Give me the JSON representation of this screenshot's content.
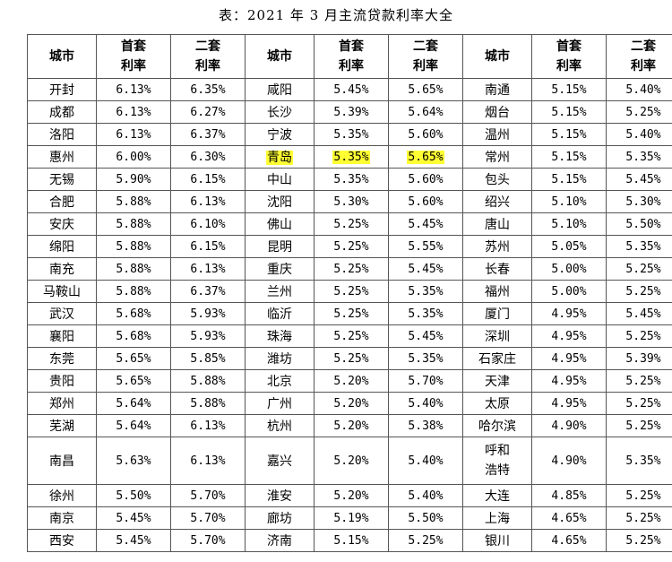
{
  "caption": "表：2021 年 3 月主流贷款利率大全",
  "headers": [
    "城市",
    "首套利率",
    "二套利率",
    "城市",
    "首套利率",
    "二套利率",
    "城市",
    "首套利率",
    "二套利率"
  ],
  "rows": [
    [
      "开封",
      "6.13%",
      "6.35%",
      "咸阳",
      "5.45%",
      "5.65%",
      "南通",
      "5.15%",
      "5.40%"
    ],
    [
      "成都",
      "6.13%",
      "6.27%",
      "长沙",
      "5.39%",
      "5.64%",
      "烟台",
      "5.15%",
      "5.25%"
    ],
    [
      "洛阳",
      "6.13%",
      "6.37%",
      "宁波",
      "5.35%",
      "5.60%",
      "温州",
      "5.15%",
      "5.40%"
    ],
    [
      "惠州",
      "6.00%",
      "6.30%",
      "青岛",
      "5.35%",
      "5.65%",
      "常州",
      "5.15%",
      "5.35%"
    ],
    [
      "无锡",
      "5.90%",
      "6.15%",
      "中山",
      "5.35%",
      "5.60%",
      "包头",
      "5.15%",
      "5.45%"
    ],
    [
      "合肥",
      "5.88%",
      "6.13%",
      "沈阳",
      "5.30%",
      "5.60%",
      "绍兴",
      "5.10%",
      "5.30%"
    ],
    [
      "安庆",
      "5.88%",
      "6.10%",
      "佛山",
      "5.25%",
      "5.45%",
      "唐山",
      "5.10%",
      "5.50%"
    ],
    [
      "绵阳",
      "5.88%",
      "6.15%",
      "昆明",
      "5.25%",
      "5.55%",
      "苏州",
      "5.05%",
      "5.35%"
    ],
    [
      "南充",
      "5.88%",
      "6.13%",
      "重庆",
      "5.25%",
      "5.45%",
      "长春",
      "5.00%",
      "5.25%"
    ],
    [
      "马鞍山",
      "5.88%",
      "6.37%",
      "兰州",
      "5.25%",
      "5.35%",
      "福州",
      "5.00%",
      "5.25%"
    ],
    [
      "武汉",
      "5.68%",
      "5.93%",
      "临沂",
      "5.25%",
      "5.35%",
      "厦门",
      "4.95%",
      "5.45%"
    ],
    [
      "襄阳",
      "5.68%",
      "5.93%",
      "珠海",
      "5.25%",
      "5.45%",
      "深圳",
      "4.95%",
      "5.25%"
    ],
    [
      "东莞",
      "5.65%",
      "5.85%",
      "潍坊",
      "5.25%",
      "5.35%",
      "石家庄",
      "4.95%",
      "5.39%"
    ],
    [
      "贵阳",
      "5.65%",
      "5.88%",
      "北京",
      "5.20%",
      "5.70%",
      "天津",
      "4.95%",
      "5.25%"
    ],
    [
      "郑州",
      "5.64%",
      "5.88%",
      "广州",
      "5.20%",
      "5.40%",
      "太原",
      "4.95%",
      "5.25%"
    ],
    [
      "芜湖",
      "5.64%",
      "6.13%",
      "杭州",
      "5.20%",
      "5.38%",
      "哈尔滨",
      "4.90%",
      "5.25%"
    ],
    [
      "南昌",
      "5.63%",
      "6.13%",
      "嘉兴",
      "5.20%",
      "5.40%",
      "呼和浩特",
      "4.90%",
      "5.35%"
    ],
    [
      "徐州",
      "5.50%",
      "5.70%",
      "淮安",
      "5.20%",
      "5.40%",
      "大连",
      "4.85%",
      "5.25%"
    ],
    [
      "南京",
      "5.45%",
      "5.70%",
      "廊坊",
      "5.19%",
      "5.50%",
      "上海",
      "4.65%",
      "5.25%"
    ],
    [
      "西安",
      "5.45%",
      "5.70%",
      "济南",
      "5.15%",
      "5.25%",
      "银川",
      "4.65%",
      "5.25%"
    ]
  ],
  "highlight": {
    "row": 3,
    "cols": [
      3,
      4,
      5
    ],
    "color": "#ffff33"
  }
}
